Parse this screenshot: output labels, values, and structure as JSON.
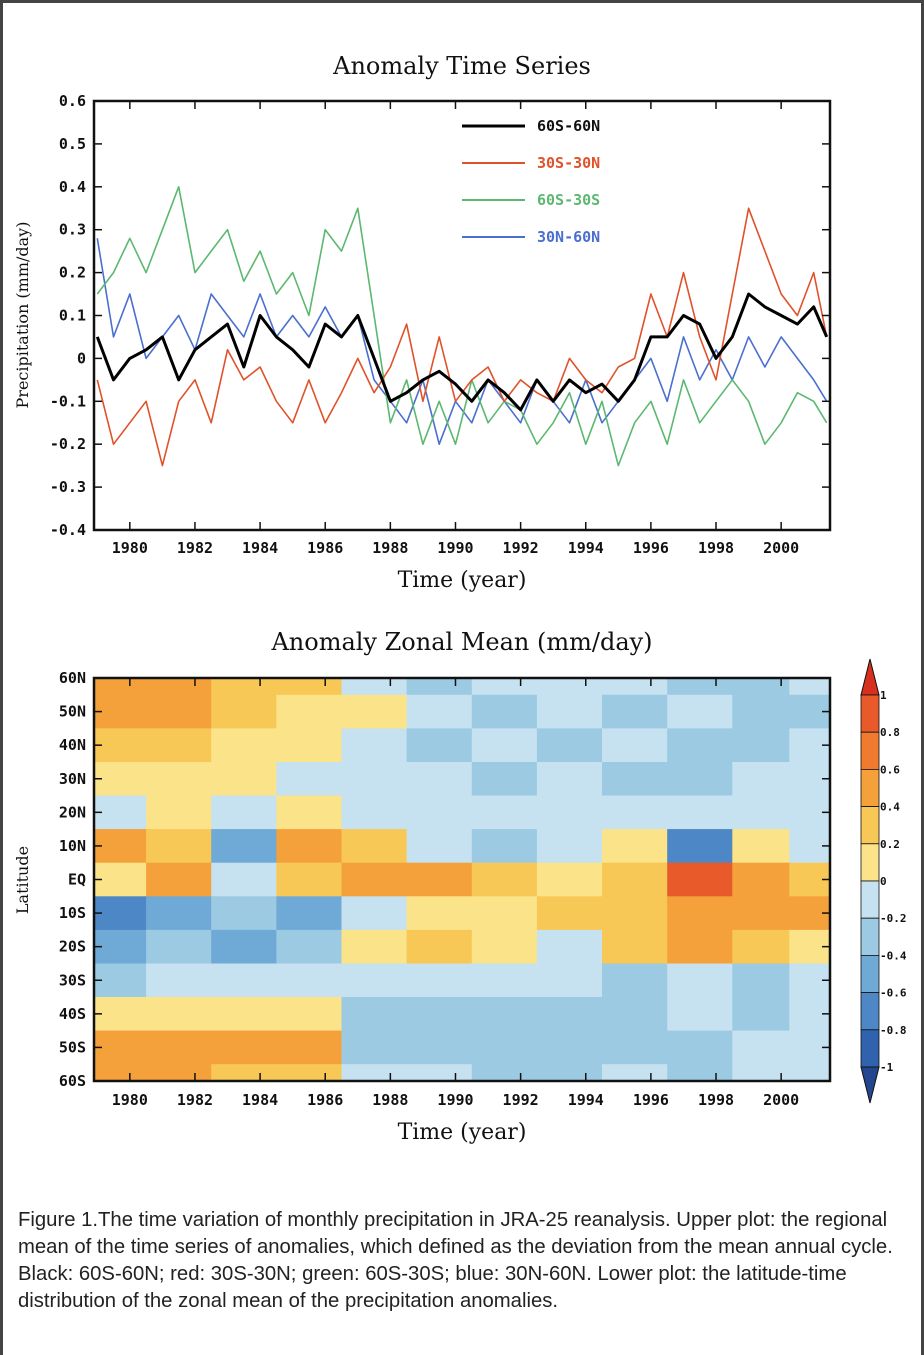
{
  "caption": "Figure 1.The time variation of monthly precipitation in JRA-25 reanalysis. Upper plot: the regional mean of the time series of anomalies, which defined as the deviation from the mean annual cycle. Black: 60S-60N; red: 30S-30N; green: 60S-30S; blue: 30N-60N. Lower plot: the latitude-time distribution of the zonal mean of the precipitation anomalies.",
  "chart_data": [
    {
      "type": "line",
      "title": "Anomaly Time Series",
      "xlabel": "Time (year)",
      "ylabel": "Precipitation (mm/day)",
      "xlim": [
        1978.9,
        2001.5
      ],
      "ylim": [
        -0.4,
        0.6
      ],
      "x_ticks": [
        "1980",
        "1982",
        "1984",
        "1986",
        "1988",
        "1990",
        "1992",
        "1994",
        "1996",
        "1998",
        "2000"
      ],
      "y_ticks": [
        "0.6",
        "0.5",
        "0.4",
        "0.3",
        "0.2",
        "0.1",
        "0",
        "-0.1",
        "-0.2",
        "-0.3",
        "-0.4"
      ],
      "grid": false,
      "legend_position": "top-center",
      "x": [
        1979.0,
        1979.5,
        1980.0,
        1980.5,
        1981.0,
        1981.5,
        1982.0,
        1982.5,
        1983.0,
        1983.5,
        1984.0,
        1984.5,
        1985.0,
        1985.5,
        1986.0,
        1986.5,
        1987.0,
        1987.5,
        1988.0,
        1988.5,
        1989.0,
        1989.5,
        1990.0,
        1990.5,
        1991.0,
        1991.5,
        1992.0,
        1992.5,
        1993.0,
        1993.5,
        1994.0,
        1994.5,
        1995.0,
        1995.5,
        1996.0,
        1996.5,
        1997.0,
        1997.5,
        1998.0,
        1998.5,
        1999.0,
        1999.5,
        2000.0,
        2000.5,
        2001.0,
        2001.4
      ],
      "series": [
        {
          "name": "60S-60N",
          "color": "#000000",
          "values": [
            0.05,
            -0.05,
            0.0,
            0.02,
            0.05,
            -0.05,
            0.02,
            0.05,
            0.08,
            -0.02,
            0.1,
            0.05,
            0.02,
            -0.02,
            0.08,
            0.05,
            0.1,
            0.0,
            -0.1,
            -0.08,
            -0.05,
            -0.03,
            -0.06,
            -0.1,
            -0.05,
            -0.08,
            -0.12,
            -0.05,
            -0.1,
            -0.05,
            -0.08,
            -0.06,
            -0.1,
            -0.05,
            0.05,
            0.05,
            0.1,
            0.08,
            0.0,
            0.05,
            0.15,
            0.12,
            0.1,
            0.08,
            0.12,
            0.05
          ]
        },
        {
          "name": "30S-30N",
          "color": "#e0522a",
          "values": [
            -0.05,
            -0.2,
            -0.15,
            -0.1,
            -0.25,
            -0.1,
            -0.05,
            -0.15,
            0.02,
            -0.05,
            -0.02,
            -0.1,
            -0.15,
            -0.05,
            -0.15,
            -0.08,
            0.0,
            -0.08,
            -0.02,
            0.08,
            -0.1,
            0.05,
            -0.1,
            -0.05,
            -0.02,
            -0.1,
            -0.05,
            -0.08,
            -0.1,
            0.0,
            -0.05,
            -0.08,
            -0.02,
            0.0,
            0.15,
            0.05,
            0.2,
            0.05,
            -0.05,
            0.15,
            0.35,
            0.25,
            0.15,
            0.1,
            0.2,
            0.05
          ]
        },
        {
          "name": "60S-30S",
          "color": "#5cb870",
          "values": [
            0.15,
            0.2,
            0.28,
            0.2,
            0.3,
            0.4,
            0.2,
            0.25,
            0.3,
            0.18,
            0.25,
            0.15,
            0.2,
            0.1,
            0.3,
            0.25,
            0.35,
            0.1,
            -0.15,
            -0.05,
            -0.2,
            -0.1,
            -0.2,
            -0.05,
            -0.15,
            -0.1,
            -0.12,
            -0.2,
            -0.15,
            -0.08,
            -0.2,
            -0.1,
            -0.25,
            -0.15,
            -0.1,
            -0.2,
            -0.05,
            -0.15,
            -0.1,
            -0.05,
            -0.1,
            -0.2,
            -0.15,
            -0.08,
            -0.1,
            -0.15
          ]
        },
        {
          "name": "30N-60N",
          "color": "#4a6fcf",
          "values": [
            0.28,
            0.05,
            0.15,
            0.0,
            0.05,
            0.1,
            0.02,
            0.15,
            0.1,
            0.05,
            0.15,
            0.05,
            0.1,
            0.05,
            0.12,
            0.05,
            0.1,
            -0.05,
            -0.1,
            -0.15,
            -0.05,
            -0.2,
            -0.1,
            -0.15,
            -0.05,
            -0.1,
            -0.15,
            -0.05,
            -0.1,
            -0.15,
            -0.05,
            -0.15,
            -0.1,
            -0.05,
            0.0,
            -0.1,
            0.05,
            -0.05,
            0.02,
            -0.05,
            0.05,
            -0.02,
            0.05,
            0.0,
            -0.05,
            -0.1
          ]
        }
      ]
    },
    {
      "type": "heatmap",
      "title": "Anomaly Zonal Mean (mm/day)",
      "xlabel": "Time (year)",
      "ylabel": "Latitude",
      "xlim": [
        1978.9,
        2001.5
      ],
      "x_ticks": [
        "1980",
        "1982",
        "1984",
        "1986",
        "1988",
        "1990",
        "1992",
        "1994",
        "1996",
        "1998",
        "2000"
      ],
      "y_ticks": [
        "60N",
        "50N",
        "40N",
        "30N",
        "20N",
        "10N",
        "EQ",
        "10S",
        "20S",
        "30S",
        "40S",
        "50S",
        "60S"
      ],
      "x": [
        1979.5,
        1981.5,
        1983.5,
        1985.5,
        1987.5,
        1989.5,
        1991.5,
        1993.5,
        1995.5,
        1997.5,
        1999.5,
        2001.0
      ],
      "y": [
        "60N",
        "50N",
        "40N",
        "30N",
        "20N",
        "10N",
        "EQ",
        "10S",
        "20S",
        "30S",
        "40S",
        "50S",
        "60S"
      ],
      "z": [
        [
          0.4,
          0.5,
          0.3,
          0.3,
          0.0,
          -0.3,
          -0.2,
          -0.2,
          -0.2,
          -0.3,
          -0.3,
          -0.2
        ],
        [
          0.5,
          0.4,
          0.3,
          0.2,
          0.1,
          -0.2,
          -0.3,
          -0.2,
          -0.3,
          -0.2,
          -0.4,
          -0.3
        ],
        [
          0.3,
          0.3,
          0.2,
          0.2,
          -0.1,
          -0.3,
          -0.2,
          -0.3,
          -0.2,
          -0.3,
          -0.3,
          -0.2
        ],
        [
          0.1,
          0.2,
          0.1,
          0.0,
          -0.2,
          -0.2,
          -0.3,
          -0.2,
          -0.3,
          -0.3,
          -0.2,
          -0.1
        ],
        [
          0.0,
          0.2,
          0.0,
          0.1,
          -0.1,
          -0.2,
          -0.1,
          -0.2,
          -0.1,
          -0.2,
          -0.1,
          0.0
        ],
        [
          0.6,
          0.3,
          -0.5,
          0.5,
          0.3,
          -0.1,
          -0.3,
          -0.1,
          0.2,
          -0.6,
          0.2,
          -0.2
        ],
        [
          0.2,
          0.4,
          0.0,
          0.3,
          0.5,
          0.4,
          0.3,
          0.2,
          0.3,
          0.8,
          0.6,
          0.3
        ],
        [
          -0.6,
          -0.5,
          -0.4,
          -0.5,
          -0.1,
          0.2,
          0.1,
          0.3,
          0.3,
          0.6,
          0.5,
          0.4
        ],
        [
          -0.5,
          -0.4,
          -0.5,
          -0.3,
          0.1,
          0.3,
          0.2,
          0.0,
          0.3,
          0.4,
          0.3,
          0.2
        ],
        [
          -0.3,
          -0.2,
          -0.1,
          -0.2,
          -0.2,
          -0.1,
          -0.2,
          -0.2,
          -0.3,
          -0.2,
          -0.3,
          -0.2
        ],
        [
          0.1,
          0.2,
          0.1,
          0.2,
          -0.3,
          -0.3,
          -0.4,
          -0.3,
          -0.3,
          -0.2,
          -0.3,
          -0.2
        ],
        [
          0.6,
          0.5,
          0.4,
          0.4,
          -0.3,
          -0.3,
          -0.3,
          -0.4,
          -0.4,
          -0.3,
          -0.2,
          -0.2
        ],
        [
          0.4,
          0.4,
          0.3,
          0.3,
          -0.2,
          -0.2,
          -0.3,
          -0.3,
          -0.2,
          -0.3,
          -0.2,
          -0.2
        ]
      ],
      "colorbar_labels": [
        "1",
        "0.8",
        "0.6",
        "0.4",
        "0.2",
        "0",
        "-0.2",
        "-0.4",
        "-0.6",
        "-0.8",
        "-1"
      ],
      "colors": [
        "#d7301f",
        "#e85a2a",
        "#f07a2e",
        "#f5a13b",
        "#f8c857",
        "#fbe38a",
        "#c6e1ef",
        "#9ccae3",
        "#6faad6",
        "#4d87c6",
        "#3062ae",
        "#24468f"
      ]
    }
  ]
}
